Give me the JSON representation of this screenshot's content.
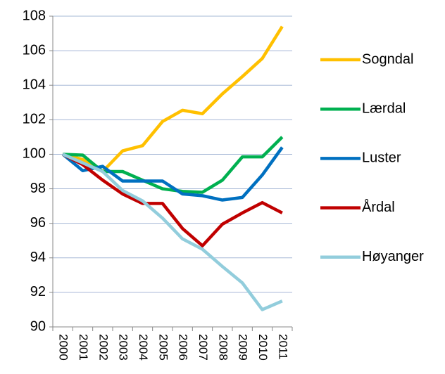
{
  "chart_data": {
    "type": "line",
    "categories": [
      "2000",
      "2001",
      "2002",
      "2003",
      "2004",
      "2005",
      "2006",
      "2007",
      "2008",
      "2009",
      "2010",
      "2011"
    ],
    "series": [
      {
        "name": "Sogndal",
        "color": "#FFC000",
        "values": [
          100,
          99.7,
          99.0,
          100.2,
          100.5,
          101.9,
          102.55,
          102.35,
          103.5,
          104.5,
          105.55,
          107.4
        ]
      },
      {
        "name": "Lærdal",
        "color": "#00B050",
        "values": [
          100,
          99.95,
          99.0,
          99.0,
          98.5,
          98.0,
          97.85,
          97.8,
          98.5,
          99.85,
          99.85,
          101.0
        ]
      },
      {
        "name": "Luster",
        "color": "#0070C0",
        "values": [
          100,
          99.05,
          99.3,
          98.45,
          98.45,
          98.45,
          97.7,
          97.6,
          97.35,
          97.5,
          98.8,
          100.4
        ]
      },
      {
        "name": "Årdal",
        "color": "#C00000",
        "values": [
          100,
          99.4,
          98.5,
          97.7,
          97.15,
          97.15,
          95.7,
          94.7,
          95.95,
          96.6,
          97.2,
          96.6
        ]
      },
      {
        "name": "Høyanger",
        "color": "#92CDDC",
        "values": [
          100,
          99.5,
          99.0,
          97.9,
          97.3,
          96.3,
          95.1,
          94.5,
          93.5,
          92.55,
          91.0,
          91.5
        ]
      }
    ],
    "ylim": [
      90,
      108
    ],
    "yticks": [
      90,
      92,
      94,
      96,
      98,
      100,
      102,
      104,
      106,
      108
    ],
    "grid": true,
    "legend": "right"
  }
}
